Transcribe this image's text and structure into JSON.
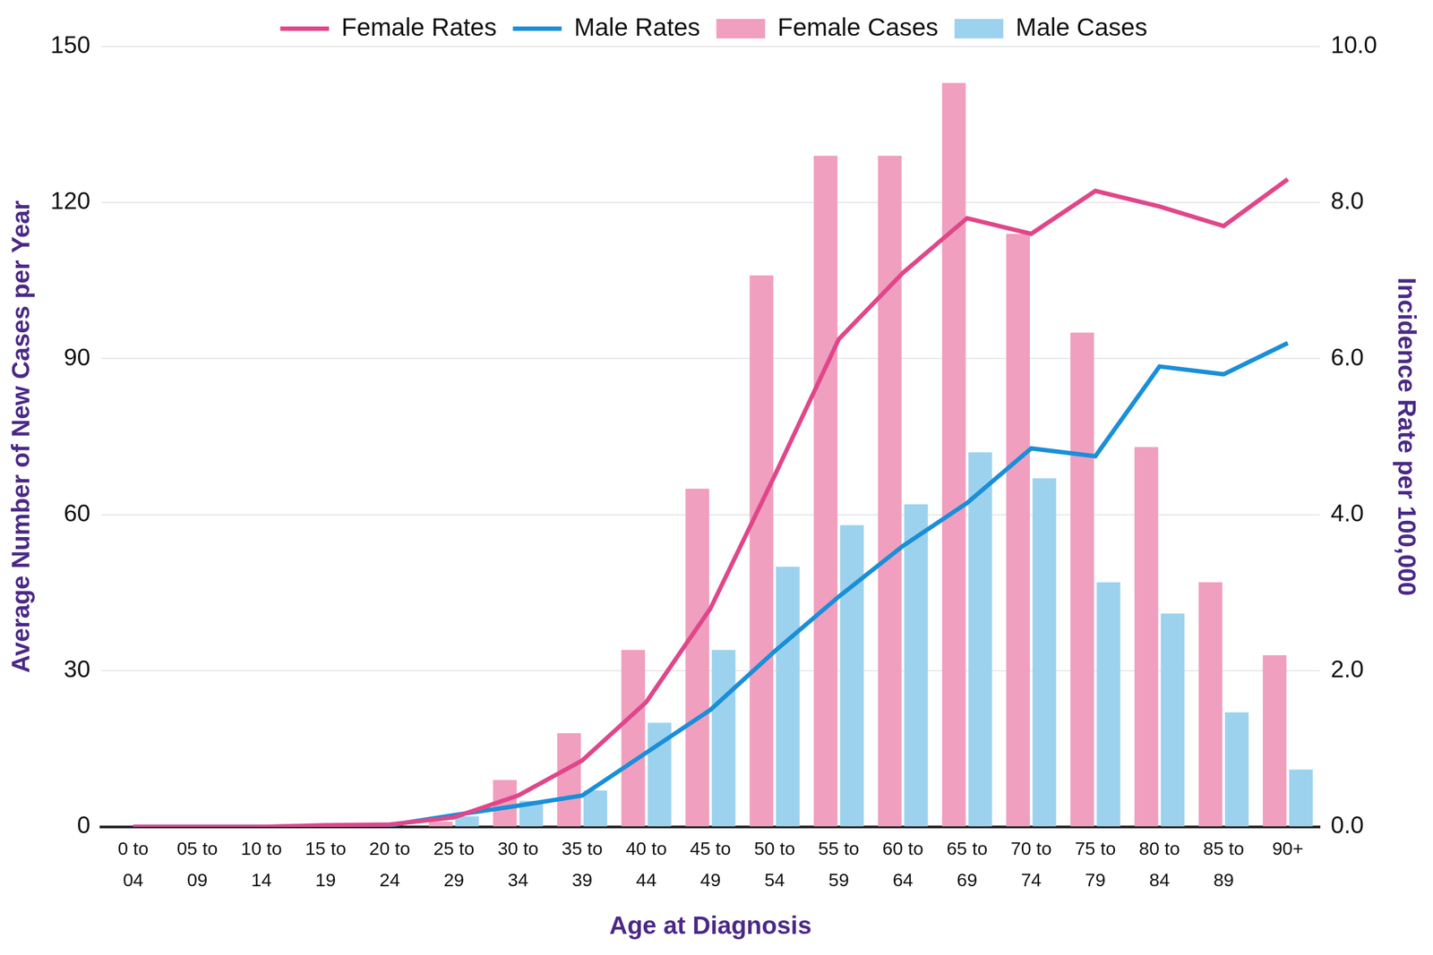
{
  "chart_data": {
    "type": "bar",
    "x_label": "Age at Diagnosis",
    "y_label": "Average Number of New Cases per Year",
    "y2_label": "Incidence Rate per 100,000",
    "categories": [
      [
        "0 to",
        "04"
      ],
      [
        "05 to",
        "09"
      ],
      [
        "10 to",
        "14"
      ],
      [
        "15 to",
        "19"
      ],
      [
        "20 to",
        "24"
      ],
      [
        "25 to",
        "29"
      ],
      [
        "30 to",
        "34"
      ],
      [
        "35 to",
        "39"
      ],
      [
        "40 to",
        "44"
      ],
      [
        "45 to",
        "49"
      ],
      [
        "50 to",
        "54"
      ],
      [
        "55 to",
        "59"
      ],
      [
        "60 to",
        "64"
      ],
      [
        "65 to",
        "69"
      ],
      [
        "70 to",
        "74"
      ],
      [
        "75 to",
        "79"
      ],
      [
        "80 to",
        "84"
      ],
      [
        "85 to",
        "89"
      ],
      "90+"
    ],
    "series": [
      {
        "name": "Female Cases",
        "type": "bar",
        "color": "#f09fbf",
        "values": [
          0,
          0,
          0,
          0,
          0,
          1,
          9,
          18,
          34,
          65,
          106,
          129,
          129,
          143,
          114,
          95,
          73,
          47,
          33
        ]
      },
      {
        "name": "Male Cases",
        "type": "bar",
        "color": "#9dd2ee",
        "values": [
          0,
          0,
          0,
          0,
          0,
          2,
          5,
          7,
          20,
          34,
          50,
          58,
          62,
          72,
          67,
          47,
          41,
          22,
          11
        ]
      },
      {
        "name": "Female Rates",
        "type": "line",
        "axis": "y2",
        "color": "#e0478a",
        "values": [
          0,
          0,
          0,
          0.02,
          0.03,
          0.12,
          0.4,
          0.85,
          1.6,
          2.8,
          4.5,
          6.25,
          7.1,
          7.8,
          7.6,
          8.15,
          7.95,
          7.7,
          8.3
        ]
      },
      {
        "name": "Male Rates",
        "type": "line",
        "axis": "y2",
        "color": "#1a8fd8",
        "values": [
          0,
          0,
          0,
          0.01,
          0.02,
          0.15,
          0.27,
          0.4,
          0.95,
          1.5,
          2.25,
          2.95,
          3.6,
          4.15,
          4.85,
          4.75,
          5.9,
          5.8,
          6.2
        ]
      }
    ],
    "ylim": [
      0,
      150
    ],
    "yticks": [
      0,
      30,
      60,
      90,
      120,
      150
    ],
    "y2lim": [
      0,
      10
    ],
    "y2ticks": [
      {
        "value": 0,
        "label": "0.0"
      },
      {
        "value": 2,
        "label": "2.0"
      },
      {
        "value": 4,
        "label": "4.0"
      },
      {
        "value": 6,
        "label": "6.0"
      },
      {
        "value": 8,
        "label": "8.0"
      },
      {
        "value": 10,
        "label": "10.0"
      }
    ],
    "grid": true,
    "legend": "top"
  }
}
